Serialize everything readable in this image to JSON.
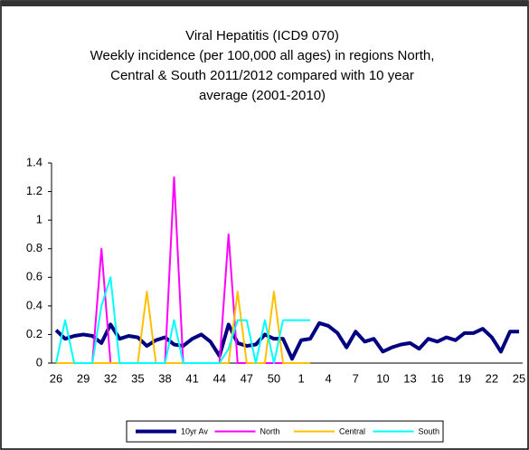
{
  "chart_data": {
    "type": "line",
    "title": [
      "Viral Hepatitis (ICD9 070)",
      "Weekly incidence (per 100,000 all ages) in regions North,",
      "Central & South 2011/2012 compared with 10 year",
      "average (2001-2010)"
    ],
    "categories": [
      "26",
      null,
      null,
      "29",
      null,
      null,
      "32",
      null,
      null,
      "35",
      null,
      null,
      "38",
      null,
      null,
      "41",
      null,
      null,
      "44",
      null,
      null,
      "47",
      null,
      null,
      "50",
      null,
      null,
      "1",
      null,
      null,
      "4",
      null,
      null,
      "7",
      null,
      null,
      "10",
      null,
      null,
      "13",
      null,
      null,
      "16",
      null,
      null,
      "19",
      null,
      null,
      "22",
      null,
      null,
      "25"
    ],
    "series": [
      {
        "name": "10yr Av",
        "color": "#000080",
        "values": [
          0.23,
          0.17,
          0.19,
          0.2,
          0.19,
          0.14,
          0.27,
          0.17,
          0.19,
          0.18,
          0.12,
          0.16,
          0.18,
          0.13,
          0.12,
          0.17,
          0.2,
          0.15,
          0.05,
          0.27,
          0.14,
          0.12,
          0.13,
          0.2,
          0.17,
          0.17,
          0.03,
          0.16,
          0.17,
          0.28,
          0.26,
          0.21,
          0.11,
          0.22,
          0.15,
          0.17,
          0.08,
          0.11,
          0.13,
          0.14,
          0.1,
          0.17,
          0.15,
          0.18,
          0.16,
          0.21,
          0.21,
          0.24,
          0.18,
          0.08,
          0.22,
          0.22
        ]
      },
      {
        "name": "North",
        "color": "#ff00ff",
        "values": [
          0,
          0,
          0,
          0,
          0,
          0.8,
          0,
          0,
          0,
          0,
          0,
          0,
          0,
          1.3,
          0,
          0,
          0,
          0,
          0,
          0.9,
          0,
          0,
          0,
          0,
          0,
          0,
          0,
          0,
          0,
          null,
          null,
          null,
          null,
          null,
          null,
          null,
          null,
          null,
          null,
          null,
          null,
          null,
          null,
          null,
          null,
          null,
          null,
          null,
          null,
          null,
          null,
          null
        ]
      },
      {
        "name": "Central",
        "color": "#ffc000",
        "values": [
          0,
          0,
          0,
          0,
          0,
          0,
          0,
          0,
          0,
          0,
          0.5,
          0,
          0,
          0,
          0,
          0,
          0,
          0,
          0,
          0,
          0.5,
          0,
          0,
          0,
          0.5,
          0,
          0,
          0,
          0,
          null,
          null,
          null,
          null,
          null,
          null,
          null,
          null,
          null,
          null,
          null,
          null,
          null,
          null,
          null,
          null,
          null,
          null,
          null,
          null,
          null,
          null,
          null
        ]
      },
      {
        "name": "South",
        "color": "#00ffff",
        "values": [
          0,
          0.3,
          0,
          0,
          0,
          0.4,
          0.6,
          0,
          0,
          0,
          0,
          0,
          0,
          0.3,
          0,
          0,
          0,
          0,
          0,
          0.1,
          0.3,
          0.3,
          0,
          0.3,
          0,
          0.3,
          0.3,
          0.3,
          0.3,
          null,
          null,
          null,
          null,
          null,
          null,
          null,
          null,
          null,
          null,
          null,
          null,
          null,
          null,
          null,
          null,
          null,
          null,
          null,
          null,
          null,
          null,
          null
        ]
      }
    ],
    "ylim": [
      0,
      1.4
    ],
    "yticks": [
      0,
      0.2,
      0.4,
      0.6,
      0.8,
      1,
      1.2,
      1.4
    ],
    "grid": false,
    "legend": "bottom"
  }
}
